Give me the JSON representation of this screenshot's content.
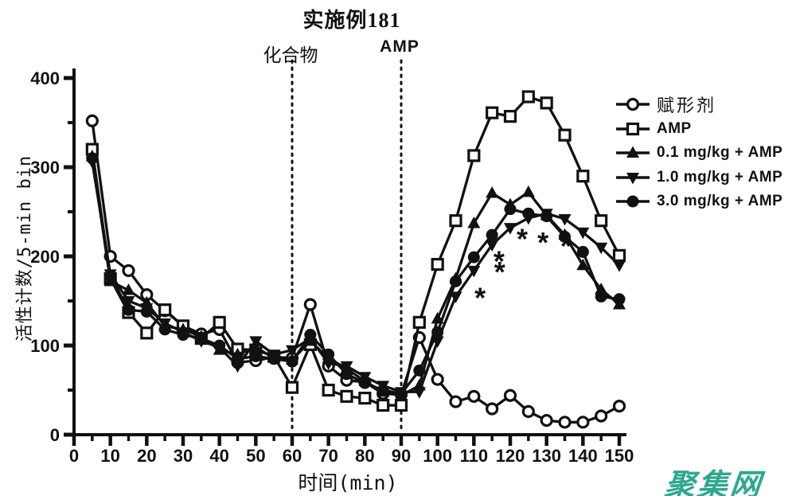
{
  "figure": {
    "background": "#ffffff",
    "ink_color": "#111111"
  },
  "chart_data": {
    "type": "line",
    "title": "实施例181",
    "xlabel": "时间(min)",
    "ylabel": "活性计数/5-min bin",
    "xlim": [
      0,
      150
    ],
    "ylim": [
      0,
      400
    ],
    "grid": false,
    "legend_position": "right",
    "x_major_ticks": [
      0,
      10,
      20,
      30,
      40,
      50,
      60,
      70,
      80,
      90,
      100,
      110,
      120,
      130,
      140,
      150
    ],
    "x_minor_step": 5,
    "y_major_ticks": [
      0,
      100,
      200,
      300,
      400
    ],
    "y_minor_ticks": [
      50,
      150,
      250,
      350
    ],
    "x": [
      5,
      10,
      15,
      20,
      25,
      30,
      35,
      40,
      45,
      50,
      55,
      60,
      65,
      70,
      75,
      80,
      85,
      90,
      95,
      100,
      105,
      110,
      115,
      120,
      125,
      130,
      135,
      140,
      145,
      150
    ],
    "series": [
      {
        "name": "赋形剂",
        "marker": "open-circle",
        "values": [
          352,
          200,
          184,
          157,
          139,
          122,
          113,
          118,
          81,
          83,
          87,
          86,
          146,
          77,
          61,
          59,
          46,
          45,
          109,
          62,
          37,
          43,
          29,
          44,
          26,
          16,
          14,
          14,
          21,
          32
        ]
      },
      {
        "name": "AMP",
        "marker": "open-square",
        "values": [
          320,
          175,
          137,
          114,
          140,
          122,
          108,
          126,
          96,
          95,
          88,
          53,
          101,
          50,
          43,
          41,
          33,
          33,
          126,
          191,
          240,
          313,
          361,
          357,
          379,
          372,
          336,
          290,
          240,
          201
        ]
      },
      {
        "name": "0.1 mg/kg + AMP",
        "marker": "filled-triangle-up",
        "values": [
          312,
          172,
          162,
          148,
          122,
          118,
          110,
          95,
          90,
          98,
          86,
          84,
          105,
          86,
          74,
          60,
          48,
          44,
          55,
          130,
          175,
          237,
          271,
          258,
          272,
          246,
          224,
          190,
          163,
          146
        ]
      },
      {
        "name": "1.0 mg/kg + AMP",
        "marker": "filled-triangle-down",
        "values": [
          306,
          180,
          150,
          142,
          125,
          115,
          105,
          98,
          77,
          105,
          90,
          95,
          108,
          80,
          77,
          65,
          55,
          48,
          48,
          105,
          155,
          184,
          213,
          232,
          243,
          248,
          242,
          227,
          210,
          190
        ]
      },
      {
        "name": "3.0 mg/kg + AMP",
        "marker": "filled-circle",
        "values": [
          310,
          178,
          140,
          138,
          118,
          112,
          108,
          100,
          85,
          88,
          85,
          82,
          112,
          90,
          68,
          58,
          50,
          46,
          72,
          115,
          172,
          199,
          224,
          253,
          248,
          245,
          222,
          205,
          155,
          152
        ]
      }
    ],
    "vlines": [
      {
        "x": 60,
        "label": "化合物"
      },
      {
        "x": 90,
        "label": "AMP"
      }
    ],
    "significance_marks": [
      {
        "symbol": "*",
        "x": 111.7,
        "y": 155
      },
      {
        "symbol": "*",
        "x": 116.9,
        "y": 196
      },
      {
        "symbol": "*",
        "x": 117.1,
        "y": 184
      },
      {
        "symbol": "*",
        "x": 123.3,
        "y": 221
      },
      {
        "symbol": "*",
        "x": 129.0,
        "y": 217
      },
      {
        "symbol": "*",
        "x": 135.3,
        "y": 213
      }
    ]
  },
  "watermark": {
    "text": "聚集网",
    "color": "#2fa78f"
  }
}
